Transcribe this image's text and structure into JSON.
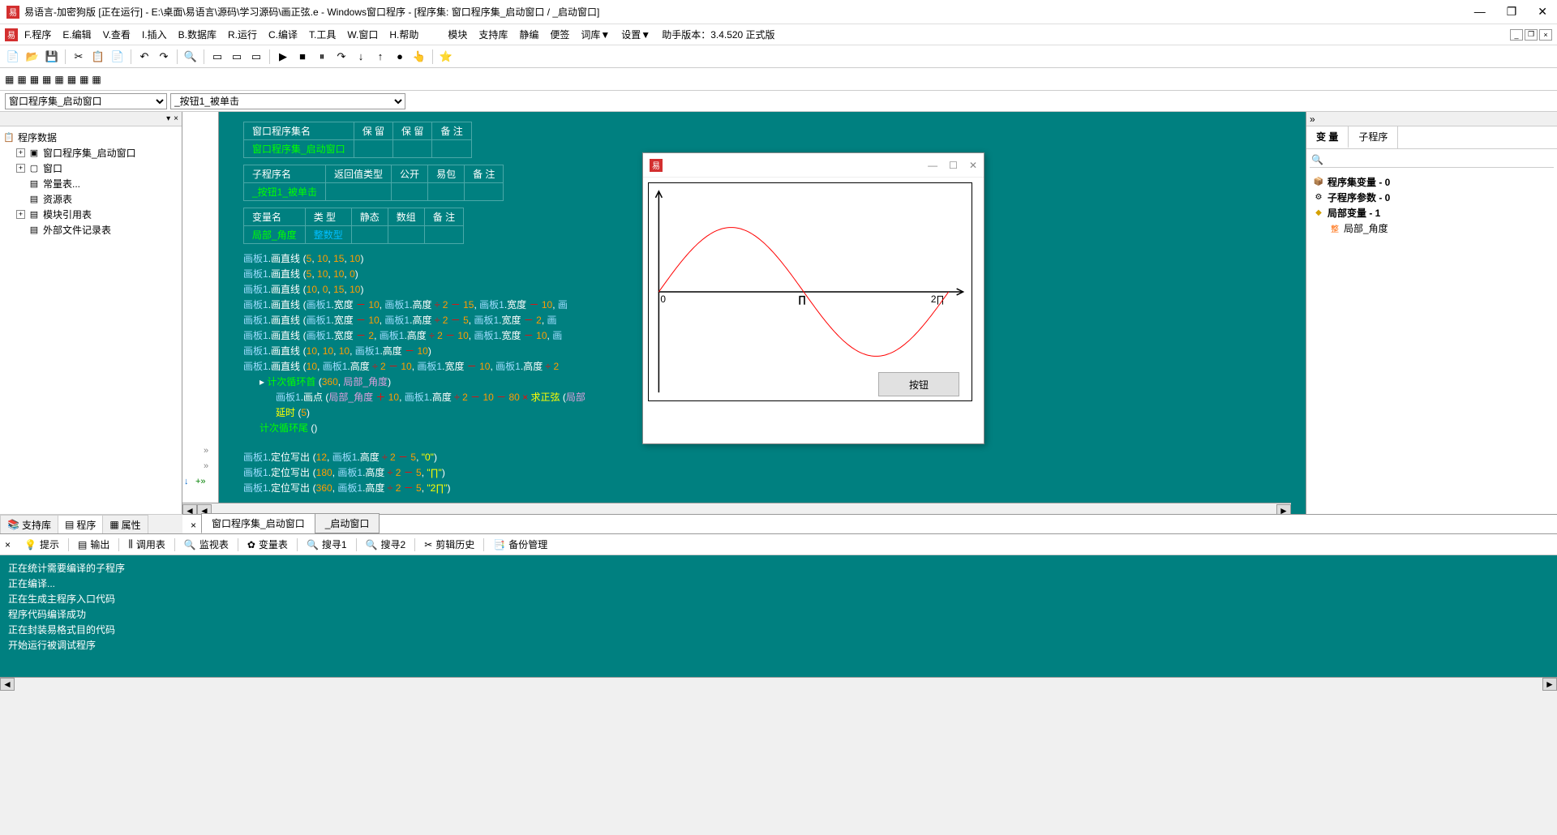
{
  "title": "易语言-加密狗版 [正在运行] - E:\\桌面\\易语言\\源码\\学习源码\\画正弦.e - Windows窗口程序 - [程序集: 窗口程序集_启动窗口 / _启动窗口]",
  "menus": {
    "file": "F.程序",
    "edit": "E.编辑",
    "view": "V.查看",
    "insert": "I.插入",
    "db": "B.数据库",
    "run": "R.运行",
    "compile": "C.编译",
    "tools": "T.工具",
    "window": "W.窗口",
    "help": "H.帮助",
    "module": "模块",
    "support": "支持库",
    "quiet": "静编",
    "note": "便签",
    "wordlib": "词库▼",
    "settings": "设置▼",
    "version": "助手版本：3.4.520 正式版"
  },
  "combos": {
    "left": "窗口程序集_启动窗口",
    "right": "_按钮1_被单击"
  },
  "tree": {
    "root": "程序数据",
    "items": [
      "窗口程序集_启动窗口",
      "窗口",
      "常量表...",
      "资源表",
      "模块引用表",
      "外部文件记录表"
    ]
  },
  "left_tabs": {
    "support": "支持库",
    "program": "程序",
    "property": "属性"
  },
  "code_tables": {
    "t1": {
      "h1": "窗口程序集名",
      "h2": "保 留",
      "h3": "保 留",
      "h4": "备 注",
      "v1": "窗口程序集_启动窗口"
    },
    "t2": {
      "h1": "子程序名",
      "h2": "返回值类型",
      "h3": "公开",
      "h4": "易包",
      "h5": "备 注",
      "v1": "_按钮1_被单击"
    },
    "t3": {
      "h1": "变量名",
      "h2": "类 型",
      "h3": "静态",
      "h4": "数组",
      "h5": "备 注",
      "v1": "局部_角度",
      "v2": "整数型"
    }
  },
  "code": {
    "obj": "画板1",
    "m_line": "画直线",
    "m_point": "画点",
    "m_write": "定位写出",
    "p_width": "宽度",
    "p_height": "高度",
    "kw_loop_start": "计次循环首",
    "kw_loop_end": "计次循环尾",
    "kw_delay": "延时",
    "kw_sin": "求正弦",
    "var": "局部_角度",
    "var2": "局部",
    "s0": "\"0\"",
    "s_pi": "\"∏\"",
    "s_2pi": "\"2∏\""
  },
  "code_tabs": {
    "tab1": "窗口程序集_启动窗口",
    "tab2": "_启动窗口"
  },
  "right": {
    "tab1": "变 量",
    "tab2": "子程序",
    "search_ph": "🔍",
    "n1": "程序集变量 - 0",
    "n2": "子程序参数 - 0",
    "n3": "局部变量 - 1",
    "n4": "局部_角度"
  },
  "bottom_tabs": {
    "hint": "提示",
    "output": "输出",
    "calltable": "调用表",
    "watch": "监视表",
    "vartable": "变量表",
    "search1": "搜寻1",
    "search2": "搜寻2",
    "cliphistory": "剪辑历史",
    "backup": "备份管理"
  },
  "output_lines": [
    "正在统计需要编译的子程序",
    "正在编译...",
    "正在生成主程序入口代码",
    "程序代码编译成功",
    "正在封装易格式目的代码",
    "开始运行被调试程序"
  ],
  "child_win": {
    "button": "按钮",
    "lbl_0": "0",
    "lbl_pi": "∏",
    "lbl_2pi": "2∏",
    "sine": {
      "stroke": "#ff0000",
      "axis": "#000000"
    }
  }
}
